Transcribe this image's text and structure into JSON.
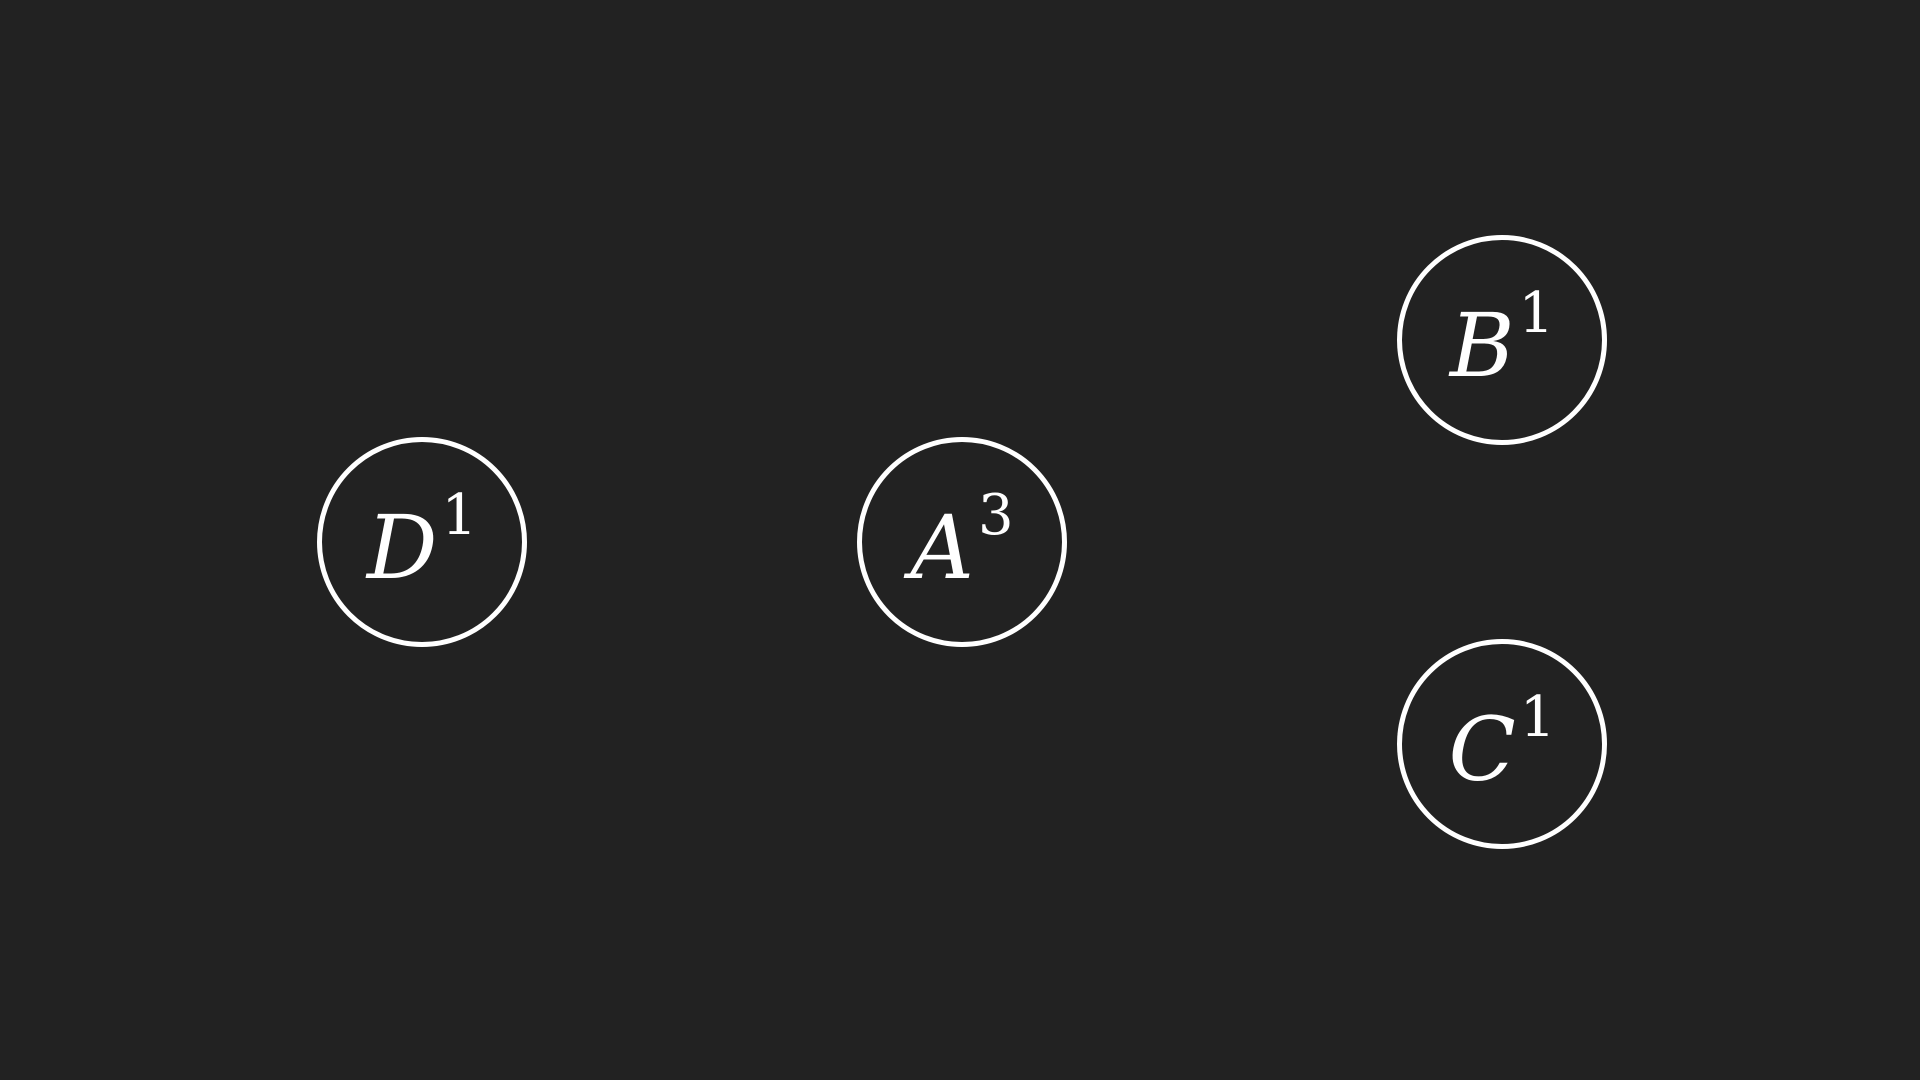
{
  "nodes": {
    "d": {
      "letter": "D",
      "superscript": "1"
    },
    "a": {
      "letter": "A",
      "superscript": "3"
    },
    "b": {
      "letter": "B",
      "superscript": "1"
    },
    "c": {
      "letter": "C",
      "superscript": "1"
    }
  },
  "colors": {
    "background": "#222222",
    "stroke": "#ffffff",
    "text": "#ffffff"
  }
}
